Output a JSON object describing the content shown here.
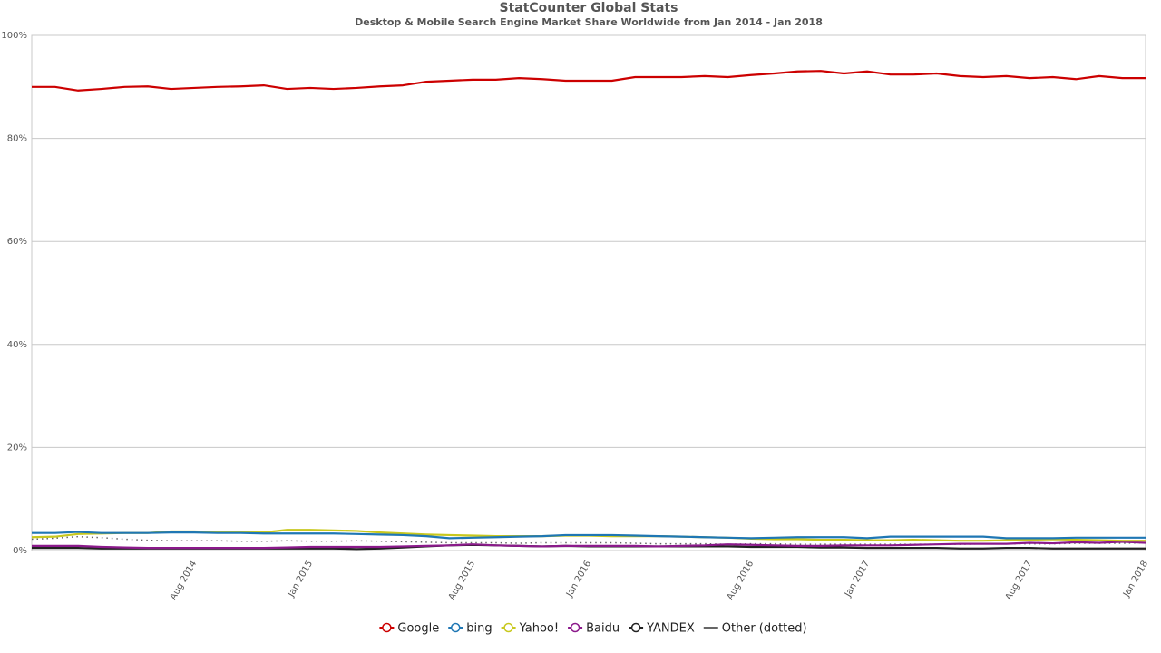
{
  "chart_data": {
    "type": "line",
    "title": "StatCounter Global Stats",
    "subtitle": "Desktop & Mobile Search Engine Market Share Worldwide from Jan 2014 - Jan 2018",
    "categories": [
      null,
      null,
      null,
      null,
      null,
      null,
      null,
      "Aug 2014",
      null,
      null,
      null,
      null,
      "Jan 2015",
      null,
      null,
      null,
      null,
      null,
      null,
      "Aug 2015",
      null,
      null,
      null,
      null,
      "Jan 2016",
      null,
      null,
      null,
      null,
      null,
      null,
      "Aug 2016",
      null,
      null,
      null,
      null,
      "Jan 2017",
      null,
      null,
      null,
      null,
      null,
      null,
      "Aug 2017",
      null,
      null,
      null,
      null,
      "Jan 2018"
    ],
    "ylim": [
      0,
      100
    ],
    "yticks": [
      {
        "value": 0,
        "label": "0%"
      },
      {
        "value": 20,
        "label": "20%"
      },
      {
        "value": 40,
        "label": "40%"
      },
      {
        "value": 60,
        "label": "60%"
      },
      {
        "value": 80,
        "label": "80%"
      },
      {
        "value": 100,
        "label": "100%"
      }
    ],
    "grid": true,
    "legend": "bottom",
    "series": [
      {
        "name": "Google",
        "color": "#cc0000",
        "values": [
          90.0,
          90.0,
          89.3,
          89.6,
          90.0,
          90.1,
          89.6,
          89.8,
          90.0,
          90.1,
          90.3,
          89.6,
          89.8,
          89.6,
          89.8,
          90.1,
          90.3,
          91.0,
          91.2,
          91.4,
          91.4,
          91.7,
          91.5,
          91.2,
          91.2,
          91.2,
          91.9,
          91.9,
          91.9,
          92.1,
          91.9,
          92.3,
          92.6,
          93.0,
          93.1,
          92.6,
          93.0,
          92.4,
          92.4,
          92.6,
          92.1,
          91.9,
          92.1,
          91.7,
          91.9,
          91.5,
          92.1,
          91.7,
          91.7
        ]
      },
      {
        "name": "bing",
        "color": "#1f77b4",
        "values": [
          3.4,
          3.4,
          3.6,
          3.4,
          3.4,
          3.4,
          3.5,
          3.5,
          3.4,
          3.4,
          3.3,
          3.3,
          3.3,
          3.3,
          3.2,
          3.1,
          3.0,
          2.8,
          2.4,
          2.5,
          2.6,
          2.7,
          2.8,
          3.0,
          3.0,
          3.0,
          2.9,
          2.8,
          2.7,
          2.6,
          2.5,
          2.4,
          2.5,
          2.6,
          2.6,
          2.6,
          2.4,
          2.7,
          2.7,
          2.7,
          2.7,
          2.7,
          2.4,
          2.4,
          2.4,
          2.5,
          2.5,
          2.5,
          2.5
        ]
      },
      {
        "name": "Yahoo!",
        "color": "#c8c81e",
        "values": [
          2.6,
          2.7,
          3.2,
          3.3,
          3.4,
          3.4,
          3.7,
          3.7,
          3.6,
          3.6,
          3.5,
          4.0,
          4.0,
          3.9,
          3.8,
          3.5,
          3.3,
          3.1,
          3.0,
          2.9,
          2.8,
          2.8,
          2.8,
          2.9,
          2.9,
          2.8,
          2.8,
          2.8,
          2.7,
          2.6,
          2.5,
          2.3,
          2.2,
          2.2,
          2.1,
          2.1,
          2.0,
          2.0,
          2.1,
          2.0,
          1.9,
          1.9,
          2.0,
          2.1,
          2.2,
          2.1,
          2.0,
          1.9,
          1.9
        ]
      },
      {
        "name": "Baidu",
        "color": "#8b1a8b",
        "values": [
          0.9,
          0.9,
          0.9,
          0.7,
          0.6,
          0.5,
          0.5,
          0.5,
          0.5,
          0.5,
          0.5,
          0.6,
          0.7,
          0.7,
          0.7,
          0.7,
          0.8,
          0.9,
          1.0,
          1.2,
          1.0,
          0.9,
          0.8,
          0.9,
          0.9,
          0.9,
          0.9,
          0.8,
          0.9,
          1.0,
          1.2,
          1.1,
          1.0,
          0.9,
          0.9,
          1.0,
          1.0,
          1.0,
          1.1,
          1.2,
          1.3,
          1.3,
          1.3,
          1.5,
          1.4,
          1.6,
          1.5,
          1.7,
          1.5
        ]
      },
      {
        "name": "YANDEX",
        "color": "#222222",
        "values": [
          0.5,
          0.5,
          0.5,
          0.4,
          0.4,
          0.4,
          0.4,
          0.4,
          0.4,
          0.4,
          0.4,
          0.4,
          0.4,
          0.4,
          0.3,
          0.4,
          0.6,
          0.8,
          1.0,
          1.1,
          1.0,
          0.9,
          0.8,
          0.9,
          0.8,
          0.8,
          0.8,
          0.8,
          0.8,
          0.8,
          0.8,
          0.7,
          0.7,
          0.7,
          0.6,
          0.6,
          0.5,
          0.5,
          0.5,
          0.5,
          0.4,
          0.4,
          0.5,
          0.5,
          0.4,
          0.4,
          0.4,
          0.4,
          0.4
        ]
      },
      {
        "name": "Other (dotted)",
        "color": "#666666",
        "dotted": true,
        "values": [
          2.2,
          2.4,
          2.7,
          2.5,
          2.2,
          2.0,
          1.9,
          1.9,
          1.9,
          1.8,
          1.8,
          1.9,
          1.8,
          1.8,
          1.9,
          1.8,
          1.7,
          1.6,
          1.5,
          1.5,
          1.5,
          1.4,
          1.5,
          1.5,
          1.5,
          1.5,
          1.4,
          1.3,
          1.3,
          1.3,
          1.2,
          1.3,
          1.3,
          1.2,
          1.2,
          1.2,
          1.2,
          1.2,
          1.2,
          1.2,
          1.2,
          1.3,
          1.3,
          1.3,
          1.3,
          1.4,
          1.4,
          1.4,
          1.5
        ]
      }
    ]
  }
}
